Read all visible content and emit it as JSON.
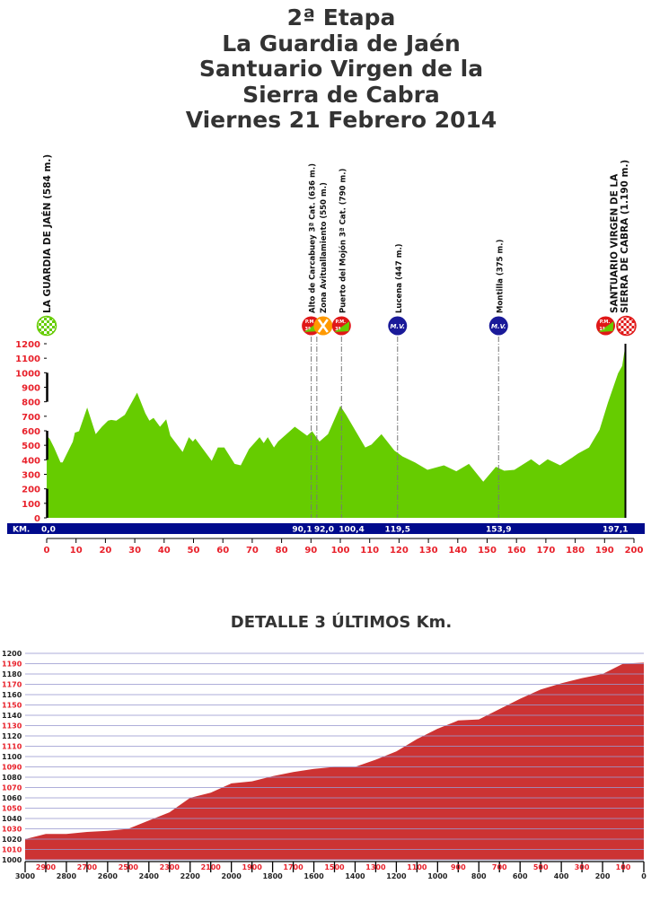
{
  "title_lines": [
    "2ª Etapa",
    "La Guardia de Jaén",
    "Santuario Virgen de la",
    "Sierra de Cabra",
    "Viernes 21 Febrero 2014"
  ],
  "colors": {
    "profile_fill": "#66cc00",
    "km_bar": "#000a8c",
    "axis_labels": "#e8202a",
    "detail_fill": "#cc3333",
    "grid": "#9a9ad0"
  },
  "chart_data": [
    {
      "type": "area",
      "xlabel": "KM.",
      "xlim": [
        0,
        200
      ],
      "ylim": [
        0,
        1200
      ],
      "x_ticks": [
        0,
        10,
        20,
        30,
        40,
        50,
        60,
        70,
        80,
        90,
        100,
        110,
        120,
        130,
        140,
        150,
        160,
        170,
        180,
        190,
        200
      ],
      "y_ticks": [
        0,
        100,
        200,
        300,
        400,
        500,
        600,
        700,
        800,
        900,
        1000,
        1100,
        1200
      ],
      "points": [
        [
          0,
          566
        ],
        [
          1,
          545
        ],
        [
          2.5,
          485
        ],
        [
          4.7,
          382
        ],
        [
          5.4,
          382
        ],
        [
          8.9,
          525
        ],
        [
          9.6,
          587
        ],
        [
          11,
          597
        ],
        [
          13.8,
          760
        ],
        [
          16.7,
          577
        ],
        [
          18.8,
          628
        ],
        [
          20.9,
          669
        ],
        [
          22,
          675
        ],
        [
          23.7,
          669
        ],
        [
          26.6,
          710
        ],
        [
          30.8,
          863
        ],
        [
          33.6,
          720
        ],
        [
          35,
          669
        ],
        [
          36.4,
          689
        ],
        [
          38.6,
          628
        ],
        [
          40.7,
          679
        ],
        [
          42.1,
          566
        ],
        [
          46.3,
          454
        ],
        [
          48.4,
          556
        ],
        [
          49.8,
          526
        ],
        [
          50.6,
          546
        ],
        [
          56.2,
          393
        ],
        [
          58.3,
          485
        ],
        [
          60.5,
          485
        ],
        [
          64,
          372
        ],
        [
          66.1,
          362
        ],
        [
          68.9,
          474
        ],
        [
          72.5,
          556
        ],
        [
          73.9,
          515
        ],
        [
          75.3,
          556
        ],
        [
          77.4,
          485
        ],
        [
          78.8,
          526
        ],
        [
          84.5,
          628
        ],
        [
          88.7,
          566
        ],
        [
          90.4,
          597
        ],
        [
          92.9,
          526
        ],
        [
          95.8,
          577
        ],
        [
          100,
          771
        ],
        [
          102,
          710
        ],
        [
          108.5,
          485
        ],
        [
          110.6,
          505
        ],
        [
          114,
          577
        ],
        [
          118.4,
          464
        ],
        [
          121.2,
          423
        ],
        [
          125.4,
          382
        ],
        [
          129.7,
          331
        ],
        [
          135.3,
          362
        ],
        [
          139.5,
          321
        ],
        [
          143.8,
          372
        ],
        [
          148.7,
          249
        ],
        [
          153,
          352
        ],
        [
          155.8,
          325
        ],
        [
          159.3,
          331
        ],
        [
          165,
          403
        ],
        [
          167.8,
          362
        ],
        [
          170.6,
          403
        ],
        [
          174.9,
          362
        ],
        [
          178.8,
          413
        ],
        [
          181,
          444
        ],
        [
          184.7,
          485
        ],
        [
          188.3,
          607
        ],
        [
          191.1,
          791
        ],
        [
          194.6,
          996
        ],
        [
          196,
          1047
        ],
        [
          197.1,
          1190
        ]
      ],
      "km_labels": [
        {
          "km": 0,
          "label": "0,0"
        },
        {
          "km": 90.1,
          "label": "90,1"
        },
        {
          "km": 92.0,
          "label": "92,0"
        },
        {
          "km": 100.4,
          "label": "100,4"
        },
        {
          "km": 119.5,
          "label": "119,5"
        },
        {
          "km": 153.9,
          "label": "153,9"
        },
        {
          "km": 197.1,
          "label": "197,1"
        }
      ],
      "waypoints": [
        {
          "km": 0,
          "label": "LA GUARDIA DE JAÉN (584 m.)",
          "icon": "start-flag-icon",
          "major": true
        },
        {
          "km": 90.1,
          "label": "Alto de Carcabuey 3ª Cat. (636 m.)",
          "icon": "mountain-prize-icon",
          "badge": "P.M. 3ª"
        },
        {
          "km": 92.0,
          "label": "Zona Avituallamiento (550 m.)",
          "icon": "feed-zone-icon"
        },
        {
          "km": 100.4,
          "label": "Puerto del Mojón 3ª Cat. (790 m.)",
          "icon": "mountain-prize-icon",
          "badge": "P.M. 3ª"
        },
        {
          "km": 119.5,
          "label": "Lucena (447 m.)",
          "icon": "intermediate-sprint-icon",
          "badge": "M.V."
        },
        {
          "km": 153.9,
          "label": "Montilla (375 m.)",
          "icon": "intermediate-sprint-icon",
          "badge": "M.V."
        },
        {
          "km": 197.1,
          "label": "SANTUARIO VIRGEN DE LA|SIERRA DE CABRA (1.190 m.)",
          "icon": "finish-flag-icon",
          "badge": "P.M. 1ª",
          "major": true
        }
      ]
    },
    {
      "type": "area",
      "title": "DETALLE 3 ÚLTIMOS Km.",
      "xlim": [
        3000,
        0
      ],
      "ylim": [
        1000,
        1200
      ],
      "x_ticks": [
        3000,
        2900,
        2800,
        2700,
        2600,
        2500,
        2400,
        2300,
        2200,
        2100,
        2000,
        1900,
        1800,
        1700,
        1600,
        1500,
        1400,
        1300,
        1200,
        1100,
        1000,
        900,
        800,
        700,
        600,
        500,
        400,
        300,
        200,
        100,
        0
      ],
      "y_ticks": [
        1000,
        1010,
        1020,
        1030,
        1040,
        1050,
        1060,
        1070,
        1080,
        1090,
        1100,
        1110,
        1120,
        1130,
        1140,
        1150,
        1160,
        1170,
        1180,
        1190,
        1200
      ],
      "points": [
        [
          3000,
          1020
        ],
        [
          2900,
          1025
        ],
        [
          2800,
          1025
        ],
        [
          2700,
          1027
        ],
        [
          2600,
          1028
        ],
        [
          2500,
          1030
        ],
        [
          2400,
          1038
        ],
        [
          2300,
          1046
        ],
        [
          2200,
          1060
        ],
        [
          2100,
          1065
        ],
        [
          2000,
          1074
        ],
        [
          1900,
          1076
        ],
        [
          1800,
          1081
        ],
        [
          1700,
          1085
        ],
        [
          1600,
          1088
        ],
        [
          1500,
          1090
        ],
        [
          1400,
          1090
        ],
        [
          1300,
          1097
        ],
        [
          1200,
          1105
        ],
        [
          1100,
          1117
        ],
        [
          1000,
          1127
        ],
        [
          900,
          1135
        ],
        [
          800,
          1136
        ],
        [
          700,
          1146
        ],
        [
          600,
          1156
        ],
        [
          500,
          1165
        ],
        [
          400,
          1171
        ],
        [
          300,
          1176
        ],
        [
          200,
          1180
        ],
        [
          100,
          1190
        ],
        [
          0,
          1191
        ]
      ]
    }
  ]
}
